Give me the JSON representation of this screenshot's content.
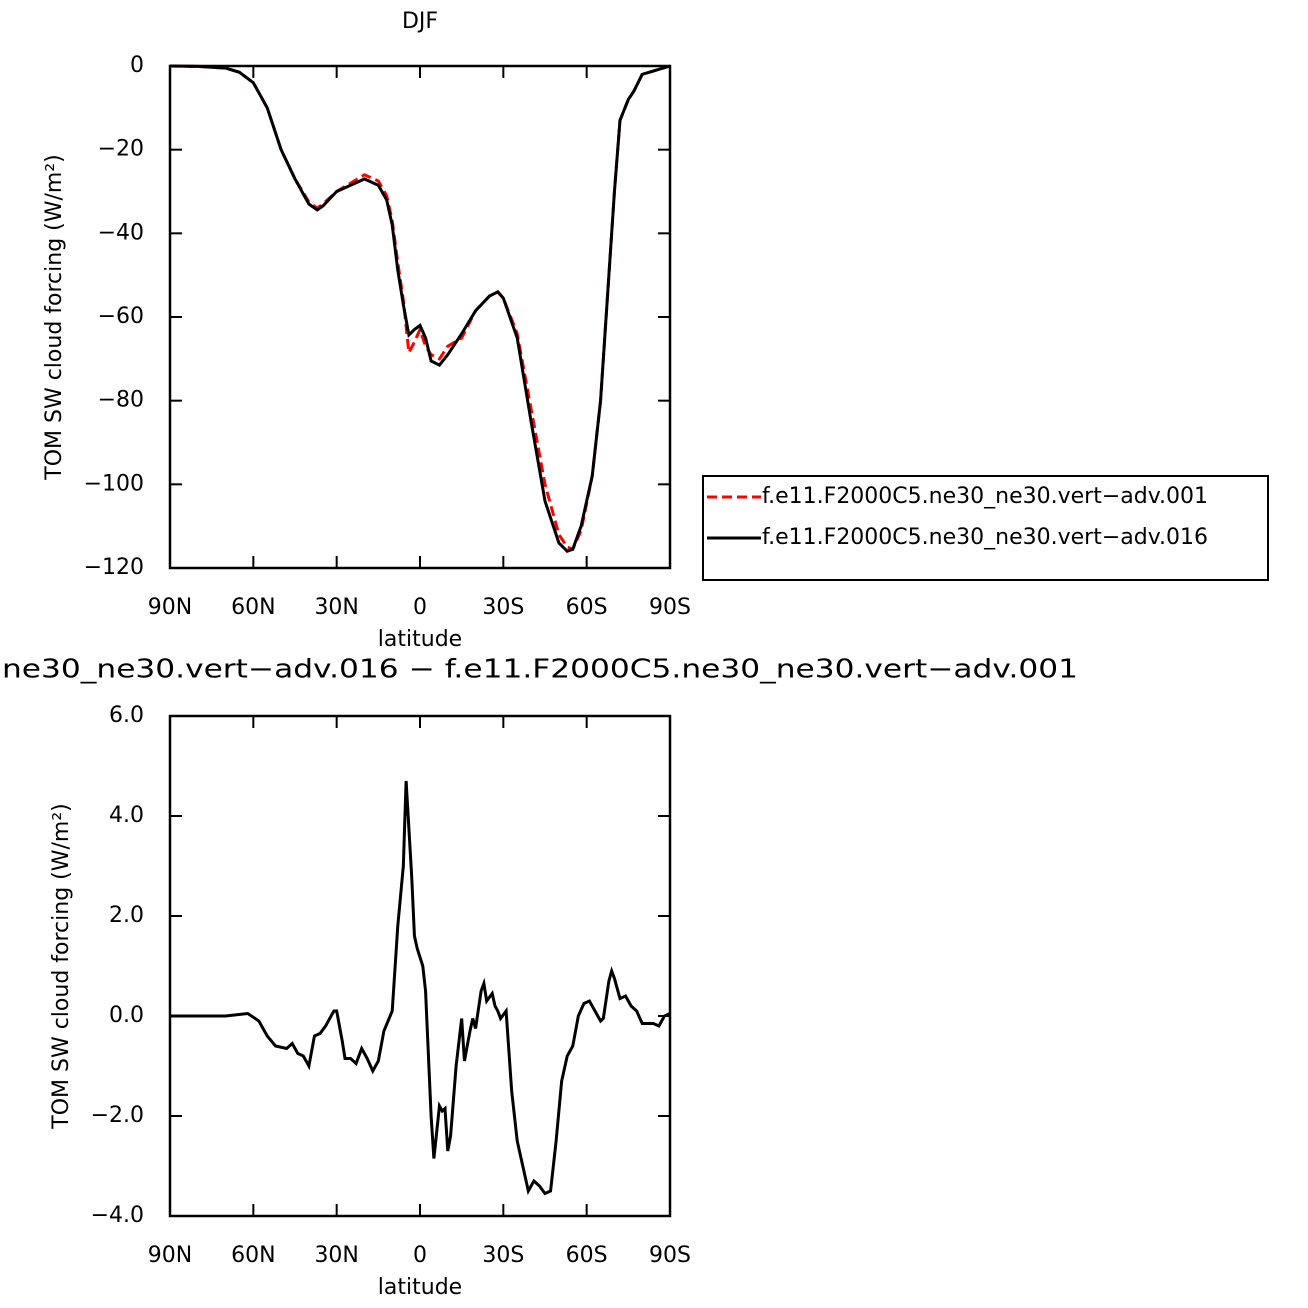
{
  "chart_data": [
    {
      "type": "line",
      "title": "DJF",
      "xlabel": "latitude",
      "ylabel": "TOM SW cloud forcing (W/m²)",
      "x": [
        90,
        80,
        70,
        65,
        60,
        55,
        50,
        45,
        40,
        37,
        35,
        30,
        25,
        20,
        15,
        12,
        10,
        8,
        6,
        4,
        2,
        0,
        -2,
        -4,
        -7,
        -10,
        -15,
        -20,
        -25,
        -28,
        -30,
        -35,
        -40,
        -45,
        -50,
        -53,
        -55,
        -58,
        -62,
        -65,
        -68,
        -70,
        -72,
        -75,
        -77,
        -80,
        -85,
        -90
      ],
      "series": [
        {
          "name": "f.e11.F2000C5.ne30_ne30.vert−adv.001",
          "color": "#ff0000",
          "linestyle": "dashed",
          "values": [
            0,
            -0.1,
            -0.5,
            -1.5,
            -4,
            -10,
            -20,
            -27,
            -32.5,
            -34,
            -33,
            -30,
            -28,
            -26,
            -27.5,
            -31,
            -37,
            -47,
            -56,
            -68.5,
            -66,
            -63,
            -67,
            -69,
            -70,
            -67,
            -65,
            -58.5,
            -55,
            -54,
            -55.5,
            -64,
            -82,
            -100,
            -112,
            -115,
            -115.5,
            -111,
            -98,
            -80,
            -50,
            -30,
            -13,
            -8,
            -6,
            -2,
            -1,
            0
          ]
        },
        {
          "name": "f.e11.F2000C5.ne30_ne30.vert−adv.016",
          "color": "#000000",
          "linestyle": "solid",
          "values": [
            0,
            -0.1,
            -0.5,
            -1.5,
            -4,
            -10,
            -20,
            -27,
            -33,
            -34.4,
            -33.5,
            -30,
            -28.5,
            -27,
            -28.5,
            -32,
            -38,
            -48.8,
            -57,
            -64.3,
            -63,
            -62,
            -65,
            -70.5,
            -71.5,
            -69,
            -64,
            -58.5,
            -55,
            -54,
            -55.5,
            -65,
            -85,
            -104,
            -114,
            -116,
            -115.5,
            -110,
            -98,
            -80,
            -50,
            -30,
            -13,
            -8,
            -6,
            -2,
            -1,
            0
          ]
        }
      ],
      "xlim": [
        90,
        -90
      ],
      "xticks": [
        {
          "value": 90,
          "label": "90N"
        },
        {
          "value": 60,
          "label": "60N"
        },
        {
          "value": 30,
          "label": "30N"
        },
        0,
        {
          "value": -30,
          "label": "30S"
        },
        {
          "value": -60,
          "label": "60S"
        },
        {
          "value": -90,
          "label": "90S"
        }
      ],
      "ylim": [
        -120,
        0
      ],
      "yticks": [
        0,
        {
          "value": -20,
          "label": "−20"
        },
        {
          "value": -40,
          "label": "−40"
        },
        {
          "value": -60,
          "label": "−60"
        },
        {
          "value": -80,
          "label": "−80"
        },
        {
          "value": -100,
          "label": "−100"
        },
        {
          "value": -120,
          "label": "−120"
        }
      ],
      "legend": "outside right"
    },
    {
      "type": "line",
      "title": "ne30_ne30.vert−adv.016 − f.e11.F2000C5.ne30_ne30.vert−adv.001",
      "xlabel": "latitude",
      "ylabel": "TOM SW cloud forcing (W/m²)",
      "x": [
        90,
        70,
        62,
        58,
        55,
        52,
        48,
        46,
        44,
        42,
        40,
        38,
        36,
        34,
        31,
        30,
        28,
        27,
        25,
        23,
        21,
        19,
        17,
        15,
        13,
        10,
        8,
        6,
        5,
        3,
        2,
        1,
        -1,
        -2,
        -4,
        -5,
        -7,
        -8,
        -9,
        -10,
        -11,
        -13,
        -15,
        -16,
        -18,
        -19,
        -20,
        -22,
        -23,
        -24,
        -26,
        -27,
        -28,
        -29,
        -31,
        -33,
        -35,
        -37,
        -39,
        -41,
        -43,
        -45,
        -47,
        -49,
        -51,
        -53,
        -55,
        -57,
        -59,
        -61,
        -63,
        -65,
        -66,
        -68,
        -69,
        -70,
        -72,
        -74,
        -76,
        -78,
        -80,
        -84,
        -86,
        -88,
        -90
      ],
      "series": [
        {
          "color": "#000000",
          "linestyle": "solid",
          "values": [
            0,
            0,
            0.05,
            -0.1,
            -0.4,
            -0.6,
            -0.65,
            -0.55,
            -0.75,
            -0.8,
            -1.0,
            -0.4,
            -0.35,
            -0.2,
            0.1,
            0.1,
            -0.5,
            -0.85,
            -0.85,
            -0.95,
            -0.65,
            -0.85,
            -1.1,
            -0.9,
            -0.3,
            0.1,
            1.8,
            3.0,
            4.7,
            2.8,
            1.6,
            1.35,
            1.0,
            0.5,
            -2.0,
            -2.85,
            -1.8,
            -1.9,
            -1.85,
            -2.7,
            -2.4,
            -1.0,
            -0.05,
            -0.9,
            -0.3,
            -0.05,
            -0.25,
            0.5,
            0.65,
            0.3,
            0.45,
            0.2,
            0.1,
            -0.05,
            0.1,
            -1.5,
            -2.5,
            -3.0,
            -3.5,
            -3.3,
            -3.4,
            -3.55,
            -3.5,
            -2.5,
            -1.3,
            -0.8,
            -0.6,
            0,
            0.25,
            0.3,
            0.1,
            -0.1,
            -0.05,
            0.7,
            0.9,
            0.75,
            0.35,
            0.4,
            0.2,
            0.1,
            -0.15,
            -0.15,
            -0.2,
            0,
            0.05
          ]
        }
      ],
      "xlim": [
        90,
        -90
      ],
      "xticks": [
        {
          "value": 90,
          "label": "90N"
        },
        {
          "value": 60,
          "label": "60N"
        },
        {
          "value": 30,
          "label": "30N"
        },
        0,
        {
          "value": -30,
          "label": "30S"
        },
        {
          "value": -60,
          "label": "60S"
        },
        {
          "value": -90,
          "label": "90S"
        }
      ],
      "ylim": [
        -4,
        6
      ],
      "yticks": [
        {
          "value": 6,
          "label": "6.0"
        },
        {
          "value": 4,
          "label": "4.0"
        },
        {
          "value": 2,
          "label": "2.0"
        },
        {
          "value": 0,
          "label": "0.0"
        },
        {
          "value": -2,
          "label": "−2.0"
        },
        {
          "value": -4,
          "label": "−4.0"
        }
      ]
    }
  ]
}
